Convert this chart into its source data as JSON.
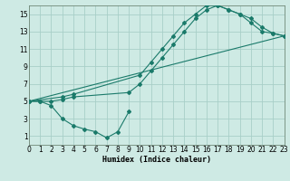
{
  "bg_color": "#ceeae4",
  "grid_color": "#a8cfc8",
  "line_color": "#1a7a6a",
  "xlabel": "Humidex (Indice chaleur)",
  "xlim": [
    0,
    23
  ],
  "ylim": [
    0,
    16
  ],
  "xticks": [
    0,
    1,
    2,
    3,
    4,
    5,
    6,
    7,
    8,
    9,
    10,
    11,
    12,
    13,
    14,
    15,
    16,
    17,
    18,
    19,
    20,
    21,
    22,
    23
  ],
  "yticks": [
    1,
    3,
    5,
    7,
    9,
    11,
    13,
    15
  ],
  "curve_dip_x": [
    0,
    1,
    2,
    3,
    4,
    5,
    6,
    7,
    8,
    9
  ],
  "curve_dip_y": [
    5,
    5,
    4.5,
    3,
    2.2,
    1.8,
    1.5,
    0.8,
    1.5,
    3.8
  ],
  "curve_mid_x": [
    0,
    1,
    2,
    3,
    4,
    9,
    10,
    11,
    12,
    13,
    14,
    15,
    16,
    17,
    18,
    19,
    20,
    21,
    22,
    23
  ],
  "curve_mid_y": [
    5,
    5,
    5,
    5.2,
    5.5,
    6,
    7,
    8.5,
    10,
    11.5,
    13,
    14.5,
    15.5,
    16,
    15.5,
    15,
    14,
    13,
    12.8,
    12.5
  ],
  "curve_top_x": [
    0,
    3,
    4,
    10,
    11,
    12,
    13,
    14,
    15,
    16,
    17,
    18,
    19,
    20,
    21,
    22,
    23
  ],
  "curve_top_y": [
    5,
    5.5,
    5.8,
    8,
    9.5,
    11,
    12.5,
    14,
    15,
    16,
    16,
    15.5,
    15,
    14.5,
    13.5,
    12.8,
    12.5
  ],
  "curve_line_x": [
    0,
    23
  ],
  "curve_line_y": [
    5,
    12.5
  ]
}
